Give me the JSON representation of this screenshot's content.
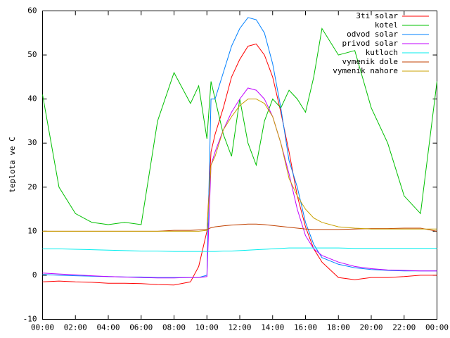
{
  "chart_data": {
    "type": "line",
    "y_label": "teplota ve C",
    "x": [
      0,
      1,
      2,
      3,
      4,
      5,
      6,
      7,
      8,
      9,
      9.5,
      10,
      10.25,
      10.5,
      11,
      11.5,
      12,
      12.5,
      13,
      13.5,
      14,
      14.5,
      15,
      15.5,
      16,
      16.5,
      17,
      18,
      19,
      20,
      21,
      22,
      23,
      24
    ],
    "series": [
      {
        "name": "3ti solar",
        "color": "#ff0000",
        "values": [
          -1.5,
          -1.3,
          -1.5,
          -1.6,
          -1.8,
          -1.8,
          -1.9,
          -2.1,
          -2.2,
          -1.5,
          2,
          10,
          28,
          32,
          38,
          45,
          49,
          52,
          52.5,
          50,
          45,
          37,
          28,
          18,
          11,
          6,
          3,
          -0.5,
          -1,
          -0.5,
          -0.5,
          -0.3,
          0,
          0
        ]
      },
      {
        "name": "kotel",
        "color": "#00c000",
        "values": [
          41,
          20,
          14,
          12,
          11.5,
          12,
          11.5,
          35,
          46,
          39,
          43,
          31,
          44,
          40,
          32,
          27,
          40,
          30,
          25,
          35,
          40,
          38,
          42,
          40,
          37,
          45,
          56,
          50,
          51,
          38,
          30,
          18,
          14,
          44
        ]
      },
      {
        "name": "odvod solar",
        "color": "#0080ff",
        "values": [
          0.2,
          0,
          -0.1,
          -0.2,
          -0.3,
          -0.4,
          -0.4,
          -0.5,
          -0.5,
          -0.5,
          -0.5,
          0,
          40,
          40,
          46,
          52,
          56,
          58.5,
          58,
          55,
          48,
          38,
          26,
          20,
          12,
          7,
          4,
          2.5,
          1.7,
          1.3,
          1.1,
          1,
          1,
          1
        ]
      },
      {
        "name": "privod solar",
        "color": "#c000ff",
        "values": [
          0.5,
          0.3,
          0.1,
          -0.1,
          -0.3,
          -0.4,
          -0.5,
          -0.6,
          -0.6,
          -0.5,
          -0.5,
          -0.3,
          25,
          28,
          33,
          37,
          40,
          42.5,
          42,
          40,
          36,
          30,
          23,
          15,
          9,
          6,
          4.5,
          3,
          2,
          1.5,
          1.2,
          1.1,
          1,
          1
        ]
      },
      {
        "name": "kutloch",
        "color": "#00eeee",
        "values": [
          6,
          6,
          5.9,
          5.8,
          5.7,
          5.6,
          5.5,
          5.5,
          5.4,
          5.4,
          5.4,
          5.4,
          5.4,
          5.4,
          5.5,
          5.5,
          5.6,
          5.7,
          5.8,
          5.9,
          6,
          6.1,
          6.2,
          6.2,
          6.2,
          6.2,
          6.2,
          6.2,
          6.1,
          6.1,
          6.1,
          6.1,
          6.1,
          6.1
        ]
      },
      {
        "name": "vymenik dole",
        "color": "#c04000",
        "values": [
          10,
          10,
          10,
          10,
          10,
          10,
          10,
          10,
          10.2,
          10.2,
          10.3,
          10.4,
          10.8,
          11,
          11.2,
          11.4,
          11.5,
          11.6,
          11.6,
          11.5,
          11.3,
          11.1,
          10.9,
          10.7,
          10.5,
          10.4,
          10.4,
          10.4,
          10.5,
          10.6,
          10.6,
          10.7,
          10.7,
          10
        ]
      },
      {
        "name": "vymenik nahore",
        "color": "#c8a000",
        "values": [
          10,
          10,
          10,
          10,
          10,
          10,
          10,
          10,
          10,
          10,
          10,
          10.2,
          25,
          27,
          33,
          36,
          38.5,
          40,
          40,
          39,
          36,
          30,
          22,
          18,
          15,
          13,
          12,
          11,
          10.7,
          10.5,
          10.5,
          10.5,
          10.5,
          10.5
        ]
      }
    ],
    "xlim": [
      0,
      24
    ],
    "xticks": [
      {
        "value": 0,
        "label": "00:00"
      },
      {
        "value": 2,
        "label": "02:00"
      },
      {
        "value": 4,
        "label": "04:00"
      },
      {
        "value": 6,
        "label": "06:00"
      },
      {
        "value": 8,
        "label": "08:00"
      },
      {
        "value": 10,
        "label": "10:00"
      },
      {
        "value": 12,
        "label": "12:00"
      },
      {
        "value": 14,
        "label": "14:00"
      },
      {
        "value": 16,
        "label": "16:00"
      },
      {
        "value": 18,
        "label": "18:00"
      },
      {
        "value": 20,
        "label": "20:00"
      },
      {
        "value": 22,
        "label": "22:00"
      },
      {
        "value": 24,
        "label": "00:00"
      }
    ],
    "ylim": [
      -10,
      60
    ],
    "yticks": [
      -10,
      0,
      10,
      20,
      30,
      40,
      50,
      60
    ],
    "legend": "top-right"
  }
}
